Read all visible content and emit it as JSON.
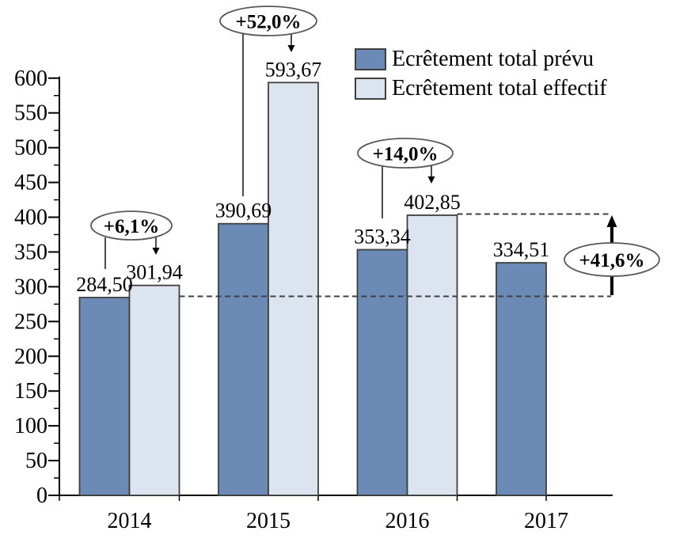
{
  "chart_data": {
    "type": "bar",
    "title": "",
    "xlabel": "",
    "ylabel": "",
    "categories": [
      "2014",
      "2015",
      "2016",
      "2017"
    ],
    "series": [
      {
        "name": "Ecrêtement total prévu",
        "values": [
          284.5,
          390.69,
          353.34,
          334.51
        ],
        "labels": [
          "284,50",
          "390,69",
          "353,34",
          "334,51"
        ],
        "color": "#6b8ab6"
      },
      {
        "name": "Ecrêtement total effectif",
        "values": [
          301.94,
          593.67,
          402.85,
          null
        ],
        "labels": [
          "301,94",
          "593,67",
          "402,85",
          null
        ],
        "color": "#dce4f0"
      }
    ],
    "ylim": [
      0,
      600
    ],
    "ytick_step": 50,
    "ytick_minor_step": 25,
    "grid": false,
    "legend_position": "top-right",
    "annotations": [
      {
        "id": "pct-2014",
        "label": "+6,1%"
      },
      {
        "id": "pct-2015",
        "label": "+52,0%"
      },
      {
        "id": "pct-2016",
        "label": "+14,0%"
      },
      {
        "id": "pct-total",
        "label": "+41,6%"
      }
    ],
    "reference_lines": [
      {
        "value": 284.5,
        "style": "dashed"
      },
      {
        "value": 402.85,
        "style": "dashed"
      }
    ]
  },
  "legend": {
    "items": [
      {
        "label": "Ecrêtement total prévu"
      },
      {
        "label": "Ecrêtement total effectif"
      }
    ]
  },
  "colors": {
    "bar_prevu": "#6b8ab6",
    "bar_effectif": "#dce4f0",
    "bar_border": "#3f3f3f",
    "axis": "#000000",
    "dashed_line": "#404040",
    "oval_stroke": "#595959",
    "oval_fill": "#ffffff",
    "annotation_line": "#000000"
  }
}
